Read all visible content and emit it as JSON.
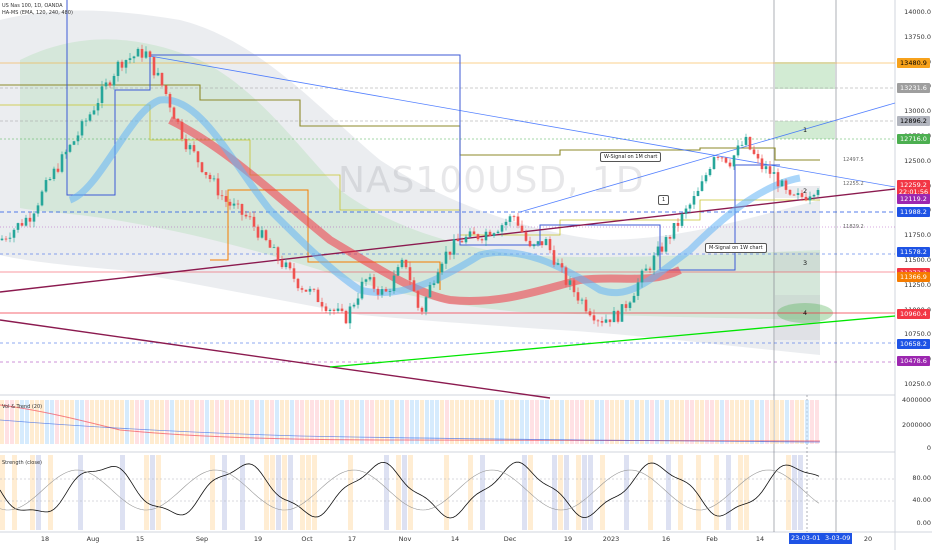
{
  "header": {
    "symbol_line": "US Nas 100, 1D, OANDA",
    "indicator_line": "HA-MS (EMA, 120, 240, 480)"
  },
  "watermark": "NAS100USD, 1D",
  "indicators": {
    "volume_label": "Vol & Trend (20)",
    "strength_label": "Strength (close)"
  },
  "callouts": {
    "w_signal_1m": "W-Signal on 1M chart",
    "m_signal_1w": "M-Signal on 1W chart",
    "marker_1": "1"
  },
  "zones": [
    "1",
    "2",
    "3",
    "4"
  ],
  "line_labels": {
    "l12497": "12497.5",
    "l12255": "12255.2",
    "l11829": "11829.2"
  },
  "price_labels": [
    {
      "text": "13480.9",
      "bg": "#f7a21c",
      "fg": "#000000",
      "price": 13480.9
    },
    {
      "text": "13231.6",
      "bg": "#9e9e9e",
      "fg": "#ffffff",
      "price": 13231.6
    },
    {
      "text": "12896.2",
      "bg": "#b2b5be",
      "fg": "#000000",
      "price": 12896.2
    },
    {
      "text": "12716.0",
      "bg": "#4caf50",
      "fg": "#ffffff",
      "price": 12716.0
    },
    {
      "text": "12259.2",
      "bg": "#f23645",
      "fg": "#ffffff",
      "price": 12259.2
    },
    {
      "text": "22:01:56",
      "bg": "#f23645",
      "fg": "#ffffff",
      "price": 12190
    },
    {
      "text": "12119.2",
      "bg": "#9c27b0",
      "fg": "#ffffff",
      "price": 12119.2
    },
    {
      "text": "11988.2",
      "bg": "#1e53e5",
      "fg": "#ffffff",
      "price": 11988.2
    },
    {
      "text": "11578.2",
      "bg": "#1e53e5",
      "fg": "#ffffff",
      "price": 11578.2
    },
    {
      "text": "11373.2",
      "bg": "#f23645",
      "fg": "#ffffff",
      "price": 11373.2
    },
    {
      "text": "11366.9",
      "bg": "#f57c00",
      "fg": "#ffffff",
      "price": 11330
    },
    {
      "text": "10960.4",
      "bg": "#f23645",
      "fg": "#ffffff",
      "price": 10960.4
    },
    {
      "text": "10658.2",
      "bg": "#1e53e5",
      "fg": "#ffffff",
      "price": 10658.2
    },
    {
      "text": "10478.6",
      "bg": "#9c27b0",
      "fg": "#ffffff",
      "price": 10478.6
    }
  ],
  "chart_data": {
    "type": "candlestick",
    "title": "US Nas 100, 1D, OANDA",
    "y_ticks": [
      14000,
      13750,
      13500,
      13250,
      13000,
      12750,
      12500,
      12250,
      12000,
      11750,
      11500,
      11250,
      11000,
      10750,
      10500,
      10250
    ],
    "ylim": [
      10150,
      14100
    ],
    "x_ticks": [
      "18",
      "Aug",
      "15",
      "Sep",
      "19",
      "Oct",
      "17",
      "Nov",
      "14",
      "Dec",
      "19",
      "2023",
      "16",
      "Feb",
      "14"
    ],
    "x_boxes": [
      "23-03-01",
      "3-03-09"
    ],
    "x_after": "20",
    "close_path": [
      {
        "x": 0,
        "y": 11700
      },
      {
        "x": 30,
        "y": 11950
      },
      {
        "x": 55,
        "y": 12400
      },
      {
        "x": 80,
        "y": 12800
      },
      {
        "x": 100,
        "y": 13150
      },
      {
        "x": 120,
        "y": 13500
      },
      {
        "x": 145,
        "y": 13600
      },
      {
        "x": 165,
        "y": 13200
      },
      {
        "x": 185,
        "y": 12700
      },
      {
        "x": 205,
        "y": 12400
      },
      {
        "x": 225,
        "y": 12100
      },
      {
        "x": 250,
        "y": 11900
      },
      {
        "x": 275,
        "y": 11550
      },
      {
        "x": 300,
        "y": 11250
      },
      {
        "x": 320,
        "y": 11100
      },
      {
        "x": 345,
        "y": 10900
      },
      {
        "x": 365,
        "y": 11300
      },
      {
        "x": 385,
        "y": 11150
      },
      {
        "x": 405,
        "y": 11500
      },
      {
        "x": 420,
        "y": 10950
      },
      {
        "x": 440,
        "y": 11500
      },
      {
        "x": 460,
        "y": 11700
      },
      {
        "x": 480,
        "y": 11750
      },
      {
        "x": 500,
        "y": 11850
      },
      {
        "x": 515,
        "y": 11950
      },
      {
        "x": 530,
        "y": 11600
      },
      {
        "x": 545,
        "y": 11700
      },
      {
        "x": 565,
        "y": 11300
      },
      {
        "x": 585,
        "y": 11050
      },
      {
        "x": 600,
        "y": 10900
      },
      {
        "x": 620,
        "y": 10950
      },
      {
        "x": 640,
        "y": 11300
      },
      {
        "x": 660,
        "y": 11600
      },
      {
        "x": 680,
        "y": 11900
      },
      {
        "x": 700,
        "y": 12200
      },
      {
        "x": 715,
        "y": 12600
      },
      {
        "x": 730,
        "y": 12500
      },
      {
        "x": 745,
        "y": 12700
      },
      {
        "x": 760,
        "y": 12450
      },
      {
        "x": 775,
        "y": 12350
      },
      {
        "x": 790,
        "y": 12100
      },
      {
        "x": 805,
        "y": 12150
      },
      {
        "x": 818,
        "y": 12259
      }
    ],
    "volume_ticks": [
      "4000000",
      "2000000",
      "0"
    ],
    "strength_ticks": [
      "80.00",
      "40.00",
      "0.00"
    ]
  }
}
